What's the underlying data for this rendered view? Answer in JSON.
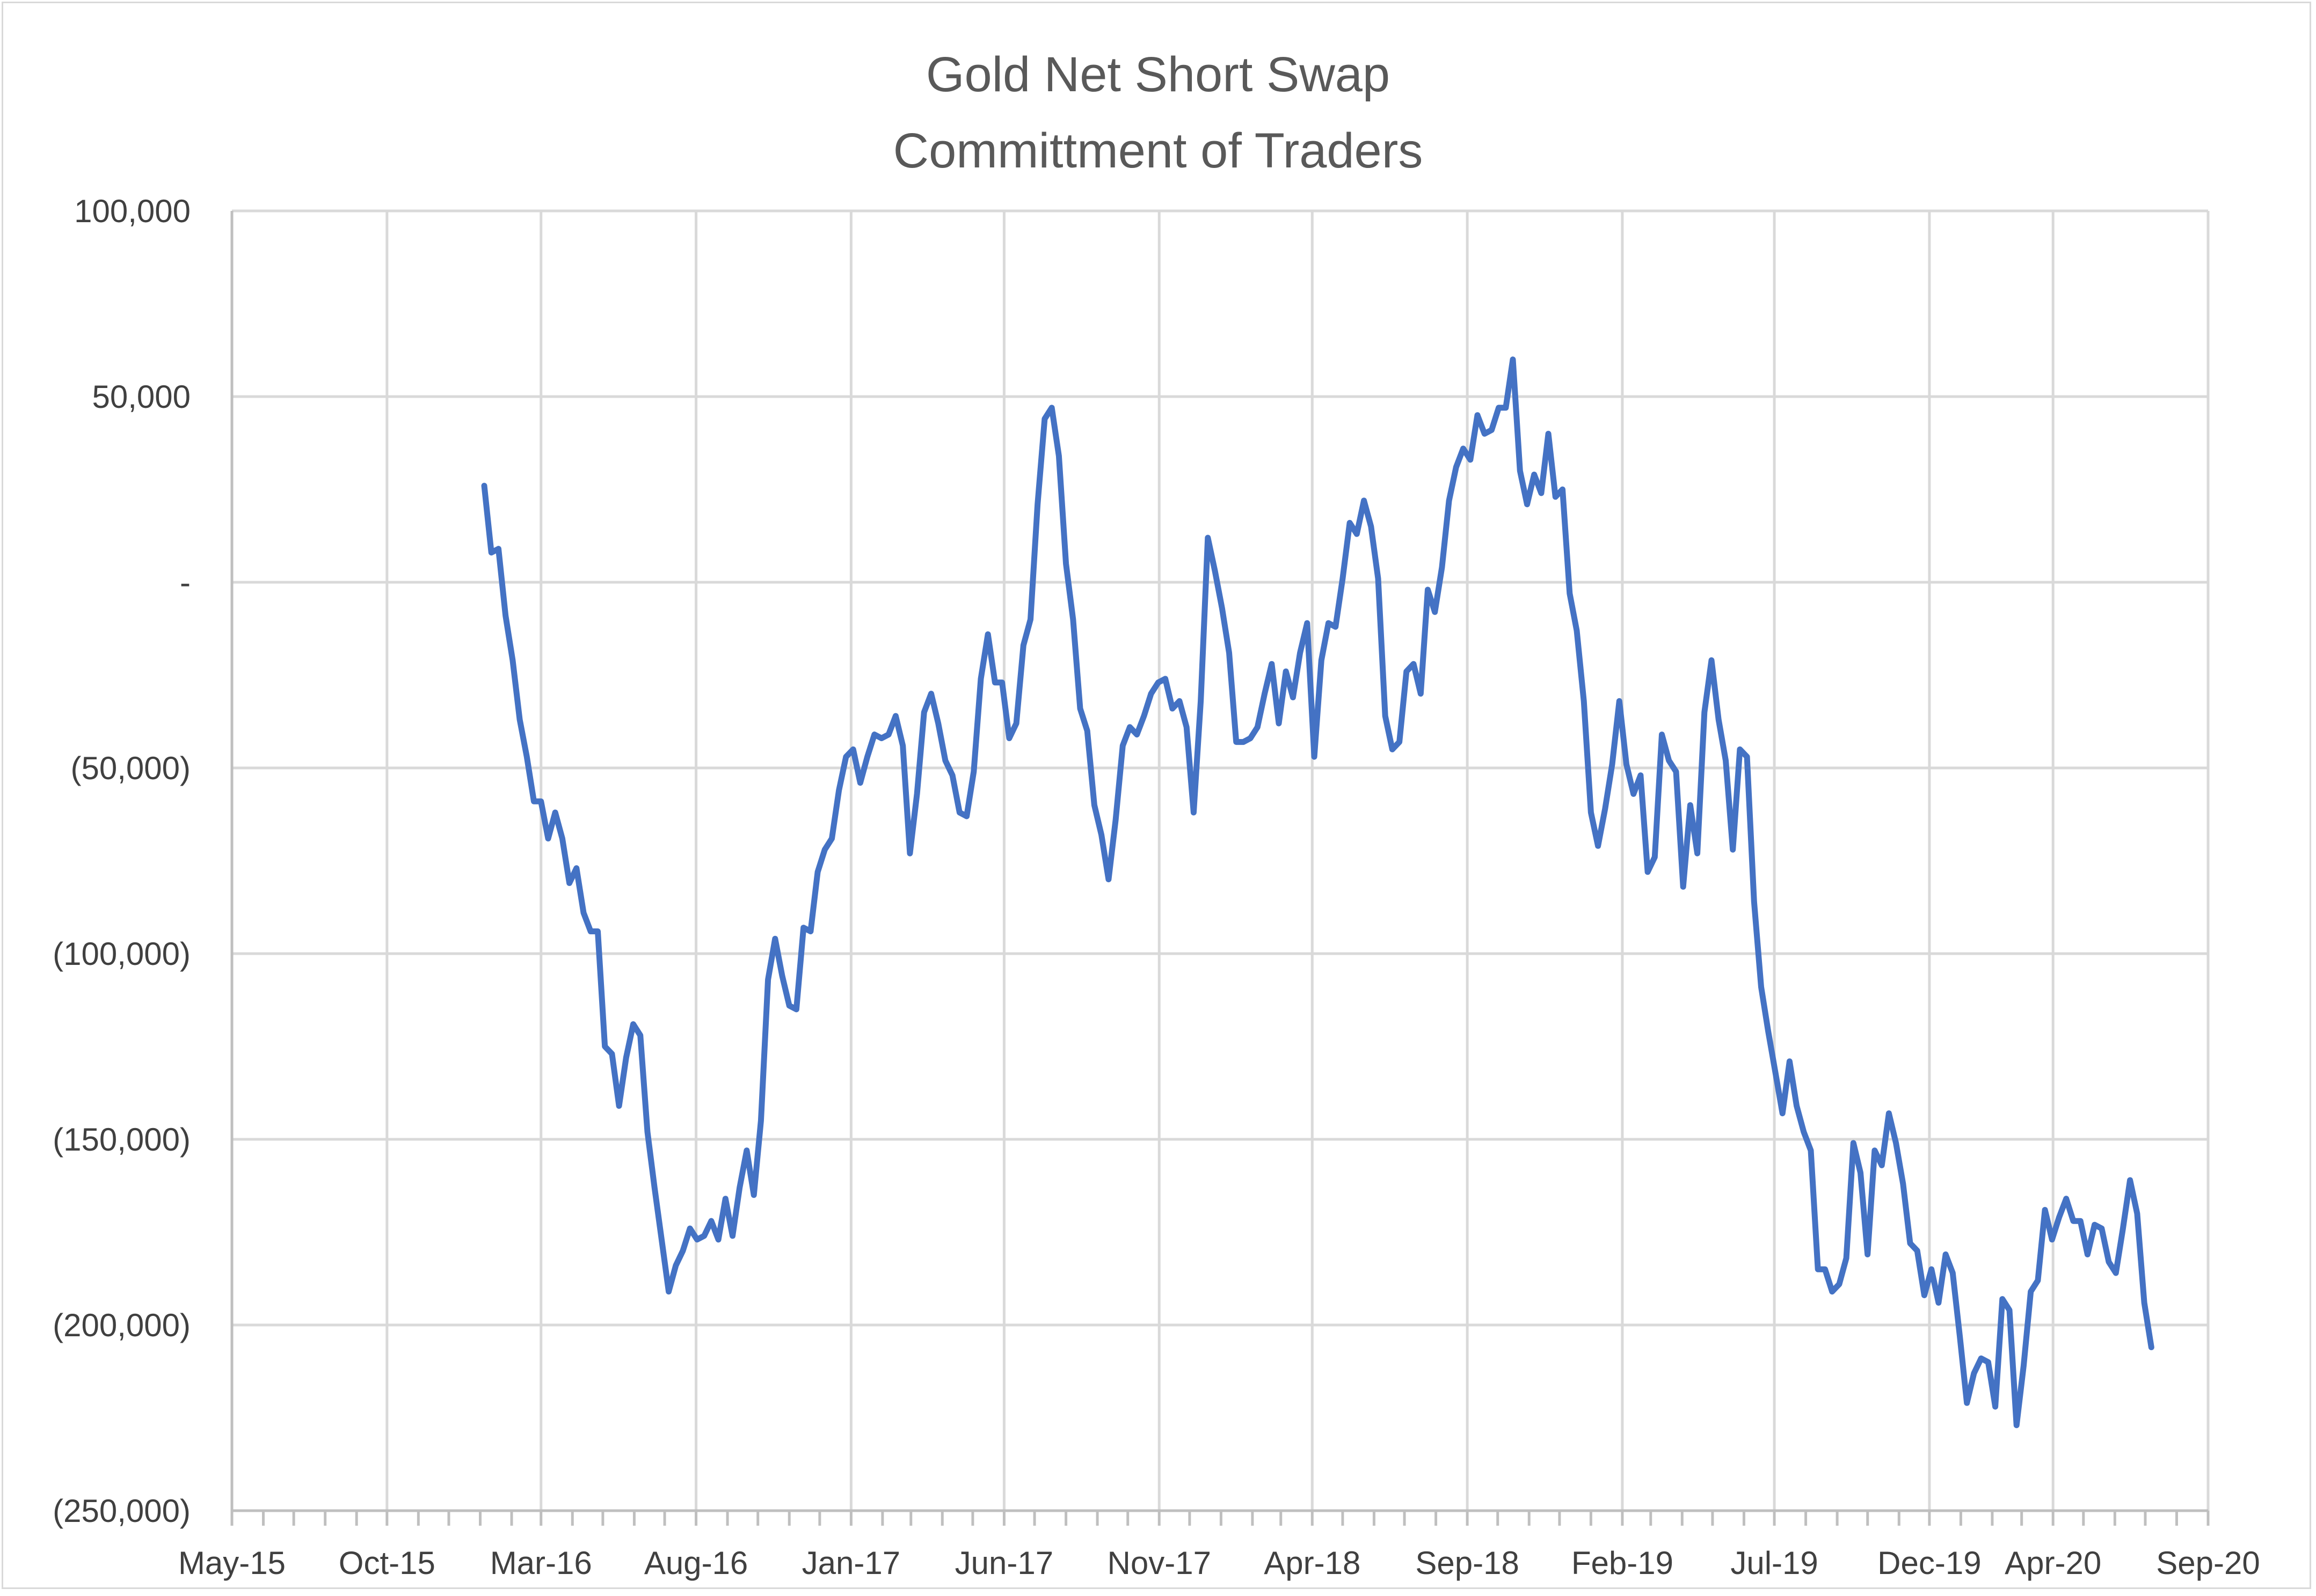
{
  "chart_data": {
    "type": "line",
    "title": "Gold Net Short Swap",
    "subtitle": "Committment of Traders",
    "xlabel": "",
    "ylabel": "",
    "ylim": [
      -250000,
      100000
    ],
    "xlim": [
      "2015-05-01",
      "2020-09-01"
    ],
    "grid": true,
    "legend": "none",
    "y_ticks": [
      {
        "value": 100000,
        "label": "100,000"
      },
      {
        "value": 50000,
        "label": "50,000"
      },
      {
        "value": 0,
        "label": "-"
      },
      {
        "value": -50000,
        "label": "(50,000)"
      },
      {
        "value": -100000,
        "label": "(100,000)"
      },
      {
        "value": -150000,
        "label": "(150,000)"
      },
      {
        "value": -200000,
        "label": "(200,000)"
      },
      {
        "value": -250000,
        "label": "(250,000)"
      }
    ],
    "x_ticks": [
      {
        "date": "2015-05-01",
        "label": "May-15"
      },
      {
        "date": "2015-10-01",
        "label": "Oct-15"
      },
      {
        "date": "2016-03-01",
        "label": "Mar-16"
      },
      {
        "date": "2016-08-01",
        "label": "Aug-16"
      },
      {
        "date": "2017-01-01",
        "label": "Jan-17"
      },
      {
        "date": "2017-06-01",
        "label": "Jun-17"
      },
      {
        "date": "2017-11-01",
        "label": "Nov-17"
      },
      {
        "date": "2018-04-01",
        "label": "Apr-18"
      },
      {
        "date": "2018-09-01",
        "label": "Sep-18"
      },
      {
        "date": "2019-02-01",
        "label": "Feb-19"
      },
      {
        "date": "2019-07-01",
        "label": "Jul-19"
      },
      {
        "date": "2019-12-01",
        "label": "Dec-19"
      },
      {
        "date": "2020-04-01",
        "label": "Apr-20"
      },
      {
        "date": "2020-09-01",
        "label": "Sep-20"
      }
    ],
    "colors": {
      "line": "#4472c4",
      "grid": "#d9d9d9",
      "axis": "#bfbfbf",
      "text": "#404040",
      "title": "#595959"
    },
    "series": [
      {
        "values": [
          [
            "2016-01-05",
            26000
          ],
          [
            "2016-01-12",
            8000
          ],
          [
            "2016-01-19",
            9000
          ],
          [
            "2016-01-26",
            -9000
          ],
          [
            "2016-02-02",
            -21000
          ],
          [
            "2016-02-09",
            -37000
          ],
          [
            "2016-02-16",
            -47000
          ],
          [
            "2016-02-23",
            -59000
          ],
          [
            "2016-03-01",
            -59000
          ],
          [
            "2016-03-08",
            -69000
          ],
          [
            "2016-03-15",
            -62000
          ],
          [
            "2016-03-22",
            -69000
          ],
          [
            "2016-03-29",
            -81000
          ],
          [
            "2016-04-05",
            -77000
          ],
          [
            "2016-04-12",
            -89000
          ],
          [
            "2016-04-19",
            -94000
          ],
          [
            "2016-04-26",
            -94000
          ],
          [
            "2016-05-03",
            -125000
          ],
          [
            "2016-05-10",
            -127000
          ],
          [
            "2016-05-17",
            -141000
          ],
          [
            "2016-05-24",
            -128000
          ],
          [
            "2016-05-31",
            -119000
          ],
          [
            "2016-06-07",
            -122000
          ],
          [
            "2016-06-14",
            -148000
          ],
          [
            "2016-06-21",
            -163000
          ],
          [
            "2016-06-28",
            -177000
          ],
          [
            "2016-07-05",
            -191000
          ],
          [
            "2016-07-12",
            -184000
          ],
          [
            "2016-07-19",
            -180000
          ],
          [
            "2016-07-26",
            -174000
          ],
          [
            "2016-08-02",
            -177000
          ],
          [
            "2016-08-09",
            -176000
          ],
          [
            "2016-08-16",
            -172000
          ],
          [
            "2016-08-23",
            -177000
          ],
          [
            "2016-08-30",
            -166000
          ],
          [
            "2016-09-06",
            -176000
          ],
          [
            "2016-09-13",
            -163000
          ],
          [
            "2016-09-20",
            -153000
          ],
          [
            "2016-09-27",
            -165000
          ],
          [
            "2016-10-04",
            -145000
          ],
          [
            "2016-10-11",
            -107000
          ],
          [
            "2016-10-18",
            -96000
          ],
          [
            "2016-10-25",
            -106000
          ],
          [
            "2016-11-01",
            -114000
          ],
          [
            "2016-11-08",
            -115000
          ],
          [
            "2016-11-15",
            -93000
          ],
          [
            "2016-11-22",
            -94000
          ],
          [
            "2016-11-29",
            -78000
          ],
          [
            "2016-12-06",
            -72000
          ],
          [
            "2016-12-13",
            -69000
          ],
          [
            "2016-12-20",
            -56000
          ],
          [
            "2016-12-27",
            -47000
          ],
          [
            "2017-01-03",
            -45000
          ],
          [
            "2017-01-10",
            -54000
          ],
          [
            "2017-01-17",
            -47000
          ],
          [
            "2017-01-24",
            -41000
          ],
          [
            "2017-01-31",
            -42000
          ],
          [
            "2017-02-07",
            -41000
          ],
          [
            "2017-02-14",
            -36000
          ],
          [
            "2017-02-21",
            -44000
          ],
          [
            "2017-02-28",
            -73000
          ],
          [
            "2017-03-07",
            -57000
          ],
          [
            "2017-03-14",
            -35000
          ],
          [
            "2017-03-21",
            -30000
          ],
          [
            "2017-03-28",
            -38000
          ],
          [
            "2017-04-04",
            -48000
          ],
          [
            "2017-04-11",
            -52000
          ],
          [
            "2017-04-18",
            -62000
          ],
          [
            "2017-04-25",
            -63000
          ],
          [
            "2017-05-02",
            -51000
          ],
          [
            "2017-05-09",
            -26000
          ],
          [
            "2017-05-16",
            -14000
          ],
          [
            "2017-05-23",
            -27000
          ],
          [
            "2017-05-30",
            -27000
          ],
          [
            "2017-06-06",
            -42000
          ],
          [
            "2017-06-13",
            -38000
          ],
          [
            "2017-06-20",
            -17000
          ],
          [
            "2017-06-27",
            -10000
          ],
          [
            "2017-07-04",
            21000
          ],
          [
            "2017-07-11",
            44000
          ],
          [
            "2017-07-18",
            47000
          ],
          [
            "2017-07-25",
            34000
          ],
          [
            "2017-08-01",
            5000
          ],
          [
            "2017-08-08",
            -10000
          ],
          [
            "2017-08-15",
            -34000
          ],
          [
            "2017-08-22",
            -40000
          ],
          [
            "2017-08-29",
            -60000
          ],
          [
            "2017-09-05",
            -68000
          ],
          [
            "2017-09-12",
            -80000
          ],
          [
            "2017-09-19",
            -64000
          ],
          [
            "2017-09-26",
            -44000
          ],
          [
            "2017-10-03",
            -39000
          ],
          [
            "2017-10-10",
            -41000
          ],
          [
            "2017-10-17",
            -36000
          ],
          [
            "2017-10-24",
            -30000
          ],
          [
            "2017-10-31",
            -27000
          ],
          [
            "2017-11-07",
            -26000
          ],
          [
            "2017-11-14",
            -34000
          ],
          [
            "2017-11-21",
            -32000
          ],
          [
            "2017-11-28",
            -39000
          ],
          [
            "2017-12-05",
            -62000
          ],
          [
            "2017-12-12",
            -32000
          ],
          [
            "2017-12-19",
            12000
          ],
          [
            "2017-12-26",
            3000
          ],
          [
            "2018-01-02",
            -7000
          ],
          [
            "2018-01-09",
            -19000
          ],
          [
            "2018-01-16",
            -43000
          ],
          [
            "2018-01-23",
            -43000
          ],
          [
            "2018-01-30",
            -42000
          ],
          [
            "2018-02-06",
            -39000
          ],
          [
            "2018-02-13",
            -30000
          ],
          [
            "2018-02-20",
            -22000
          ],
          [
            "2018-02-27",
            -38000
          ],
          [
            "2018-03-06",
            -24000
          ],
          [
            "2018-03-13",
            -31000
          ],
          [
            "2018-03-20",
            -19000
          ],
          [
            "2018-03-27",
            -11000
          ],
          [
            "2018-04-03",
            -47000
          ],
          [
            "2018-04-10",
            -21000
          ],
          [
            "2018-04-17",
            -11000
          ],
          [
            "2018-04-24",
            -12000
          ],
          [
            "2018-05-01",
            1000
          ],
          [
            "2018-05-08",
            16000
          ],
          [
            "2018-05-15",
            13000
          ],
          [
            "2018-05-22",
            22000
          ],
          [
            "2018-05-29",
            15000
          ],
          [
            "2018-06-05",
            1000
          ],
          [
            "2018-06-12",
            -36000
          ],
          [
            "2018-06-19",
            -45000
          ],
          [
            "2018-06-26",
            -43000
          ],
          [
            "2018-07-03",
            -24000
          ],
          [
            "2018-07-10",
            -22000
          ],
          [
            "2018-07-17",
            -30000
          ],
          [
            "2018-07-24",
            -2000
          ],
          [
            "2018-07-31",
            -8000
          ],
          [
            "2018-08-07",
            4000
          ],
          [
            "2018-08-14",
            22000
          ],
          [
            "2018-08-21",
            31000
          ],
          [
            "2018-08-28",
            36000
          ],
          [
            "2018-09-04",
            33000
          ],
          [
            "2018-09-11",
            45000
          ],
          [
            "2018-09-18",
            40000
          ],
          [
            "2018-09-25",
            41000
          ],
          [
            "2018-10-02",
            47000
          ],
          [
            "2018-10-09",
            47000
          ],
          [
            "2018-10-16",
            60000
          ],
          [
            "2018-10-23",
            30000
          ],
          [
            "2018-10-30",
            21000
          ],
          [
            "2018-11-06",
            29000
          ],
          [
            "2018-11-13",
            24000
          ],
          [
            "2018-11-20",
            40000
          ],
          [
            "2018-11-27",
            23000
          ],
          [
            "2018-12-04",
            25000
          ],
          [
            "2018-12-11",
            -3000
          ],
          [
            "2018-12-18",
            -13000
          ],
          [
            "2018-12-25",
            -32000
          ],
          [
            "2019-01-01",
            -62000
          ],
          [
            "2019-01-08",
            -71000
          ],
          [
            "2019-01-15",
            -61000
          ],
          [
            "2019-01-22",
            -49000
          ],
          [
            "2019-01-29",
            -32000
          ],
          [
            "2019-02-05",
            -49000
          ],
          [
            "2019-02-12",
            -57000
          ],
          [
            "2019-02-19",
            -52000
          ],
          [
            "2019-02-26",
            -78000
          ],
          [
            "2019-03-05",
            -74000
          ],
          [
            "2019-03-12",
            -41000
          ],
          [
            "2019-03-19",
            -48000
          ],
          [
            "2019-03-26",
            -51000
          ],
          [
            "2019-04-02",
            -82000
          ],
          [
            "2019-04-09",
            -60000
          ],
          [
            "2019-04-16",
            -73000
          ],
          [
            "2019-04-23",
            -35000
          ],
          [
            "2019-04-30",
            -21000
          ],
          [
            "2019-05-07",
            -37000
          ],
          [
            "2019-05-14",
            -48000
          ],
          [
            "2019-05-21",
            -72000
          ],
          [
            "2019-05-28",
            -45000
          ],
          [
            "2019-06-04",
            -47000
          ],
          [
            "2019-06-11",
            -86000
          ],
          [
            "2019-06-18",
            -109000
          ],
          [
            "2019-06-25",
            -121000
          ],
          [
            "2019-07-02",
            -132000
          ],
          [
            "2019-07-09",
            -143000
          ],
          [
            "2019-07-16",
            -129000
          ],
          [
            "2019-07-23",
            -141000
          ],
          [
            "2019-07-30",
            -148000
          ],
          [
            "2019-08-06",
            -153000
          ],
          [
            "2019-08-13",
            -185000
          ],
          [
            "2019-08-20",
            -185000
          ],
          [
            "2019-08-27",
            -191000
          ],
          [
            "2019-09-03",
            -189000
          ],
          [
            "2019-09-10",
            -182000
          ],
          [
            "2019-09-17",
            -151000
          ],
          [
            "2019-09-24",
            -159000
          ],
          [
            "2019-10-01",
            -181000
          ],
          [
            "2019-10-08",
            -153000
          ],
          [
            "2019-10-15",
            -157000
          ],
          [
            "2019-10-22",
            -143000
          ],
          [
            "2019-10-29",
            -151000
          ],
          [
            "2019-11-05",
            -162000
          ],
          [
            "2019-11-12",
            -178000
          ],
          [
            "2019-11-19",
            -180000
          ],
          [
            "2019-11-26",
            -192000
          ],
          [
            "2019-12-03",
            -185000
          ],
          [
            "2019-12-10",
            -194000
          ],
          [
            "2019-12-17",
            -181000
          ],
          [
            "2019-12-24",
            -186000
          ],
          [
            "2019-12-31",
            -203000
          ],
          [
            "2020-01-07",
            -221000
          ],
          [
            "2020-01-14",
            -213000
          ],
          [
            "2020-01-21",
            -209000
          ],
          [
            "2020-01-28",
            -210000
          ],
          [
            "2020-02-04",
            -222000
          ],
          [
            "2020-02-11",
            -193000
          ],
          [
            "2020-02-18",
            -196000
          ],
          [
            "2020-02-25",
            -227000
          ],
          [
            "2020-03-03",
            -211000
          ],
          [
            "2020-03-10",
            -191000
          ],
          [
            "2020-03-17",
            -188000
          ],
          [
            "2020-03-24",
            -169000
          ],
          [
            "2020-03-31",
            -177000
          ],
          [
            "2020-04-07",
            -171000
          ],
          [
            "2020-04-14",
            -166000
          ],
          [
            "2020-04-21",
            -172000
          ],
          [
            "2020-04-28",
            -172000
          ],
          [
            "2020-05-05",
            -181000
          ],
          [
            "2020-05-12",
            -173000
          ],
          [
            "2020-05-19",
            -174000
          ],
          [
            "2020-05-26",
            -183000
          ],
          [
            "2020-06-02",
            -186000
          ],
          [
            "2020-06-09",
            -174000
          ],
          [
            "2020-06-16",
            -161000
          ],
          [
            "2020-06-23",
            -170000
          ],
          [
            "2020-06-30",
            -194000
          ],
          [
            "2020-07-07",
            -206000
          ]
        ]
      }
    ]
  }
}
